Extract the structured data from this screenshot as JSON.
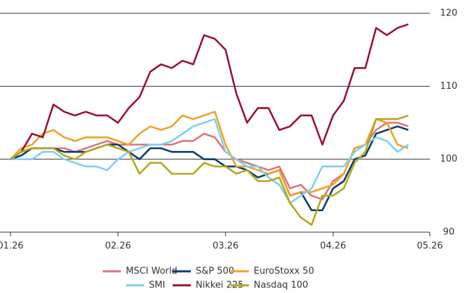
{
  "chart_data": {
    "type": "line",
    "x": [
      0,
      2,
      4,
      6,
      8,
      10,
      12,
      14,
      16,
      18,
      20,
      22,
      24,
      26,
      28,
      30,
      32,
      34,
      36,
      38,
      40,
      42,
      44,
      46,
      48,
      50,
      52,
      54,
      56,
      58,
      60,
      62,
      64,
      66,
      68,
      70,
      72,
      74
    ],
    "xlim": [
      0,
      78
    ],
    "xticks": [
      {
        "value": 0,
        "label": "01.26"
      },
      {
        "value": 20,
        "label": "02.26"
      },
      {
        "value": 40,
        "label": "03.26"
      },
      {
        "value": 60,
        "label": "04.26"
      },
      {
        "value": 78,
        "label": "05.26"
      }
    ],
    "ylim": [
      90,
      120
    ],
    "yticks": [
      90,
      100,
      110,
      120
    ],
    "grid": true,
    "series": [
      {
        "name": "MSCI World",
        "color": "#e0737c",
        "values": [
          100,
          101,
          101.5,
          101.5,
          101.5,
          101.5,
          101,
          101.5,
          102,
          102.5,
          102,
          102,
          102,
          102,
          102,
          102,
          102.5,
          102.5,
          103.5,
          103,
          101,
          100,
          99.5,
          99,
          98.5,
          99,
          96,
          96.5,
          95,
          94.5,
          97,
          98,
          101.5,
          102,
          104,
          105,
          105,
          104.5
        ]
      },
      {
        "name": "S&P 500",
        "color": "#0b3b6e",
        "values": [
          100,
          100.5,
          101.5,
          101.5,
          101.5,
          101,
          101,
          101,
          101.5,
          102,
          102,
          101,
          100,
          101.5,
          101.5,
          101,
          101,
          101,
          100,
          100,
          99,
          99,
          98.5,
          97.5,
          98,
          98.5,
          95,
          95.5,
          93,
          93,
          96,
          97,
          100,
          100.5,
          103.5,
          104,
          104.5,
          104
        ]
      },
      {
        "name": "EuroStoxx 50",
        "color": "#f0a223",
        "values": [
          100,
          101.5,
          102,
          103.5,
          104,
          103,
          102.5,
          103,
          103,
          103,
          102.5,
          102,
          103.5,
          104.5,
          104,
          104.5,
          106,
          105.5,
          106,
          106.5,
          102,
          99,
          99,
          98.5,
          98,
          98.5,
          95,
          95.5,
          95.5,
          96,
          96.5,
          98,
          101.5,
          102,
          105.5,
          105,
          102,
          101.5
        ]
      },
      {
        "name": "SMI",
        "color": "#7fd0ee",
        "values": [
          100,
          100,
          100,
          101,
          101,
          100,
          99.5,
          99,
          99,
          98.5,
          100,
          101,
          101.5,
          102,
          102,
          102.5,
          103.5,
          104.5,
          105,
          105.5,
          101,
          100,
          99,
          99,
          97.5,
          96.5,
          94,
          95,
          96,
          99,
          99,
          99,
          101,
          102,
          103,
          102.5,
          101,
          102
        ]
      },
      {
        "name": "Nikkei 225",
        "color": "#9a1232",
        "values": [
          100,
          101,
          103.5,
          103,
          107.5,
          106.5,
          106,
          106.5,
          106,
          106,
          105,
          107,
          108.5,
          112,
          113,
          112.5,
          113.5,
          113,
          117,
          116.5,
          115,
          109,
          105,
          107,
          107,
          104,
          104.5,
          106,
          106,
          102,
          106,
          108,
          112.5,
          112.5,
          118,
          117,
          118,
          118.5
        ]
      },
      {
        "name": "Nasdaq 100",
        "color": "#b4a81a",
        "values": [
          100,
          101,
          101.5,
          101.5,
          101.5,
          100.5,
          100,
          101,
          101.5,
          102,
          101.5,
          101,
          98,
          99.5,
          99.5,
          98,
          98,
          98,
          99.5,
          99,
          99,
          98,
          98.5,
          97,
          97,
          97.5,
          94,
          92,
          91,
          95,
          95,
          96,
          99.5,
          101,
          105.5,
          105.5,
          105.5,
          106
        ]
      }
    ]
  }
}
